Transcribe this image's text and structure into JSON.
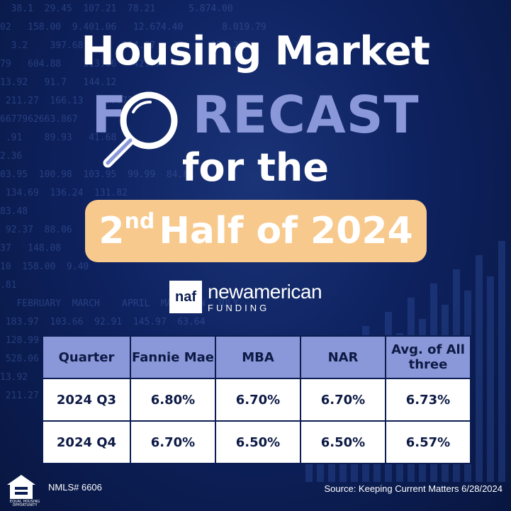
{
  "title": {
    "line1": "Housing Market",
    "line2_prefix": "F",
    "line2_suffix": "RECAST",
    "line3": "for the",
    "highlight_ordinal": "2",
    "highlight_suffix": "nd",
    "highlight_rest": "Half of 2024"
  },
  "logo": {
    "mark": "naf",
    "name": "newamerican",
    "sub": "FUNDING"
  },
  "table": {
    "headers": [
      "Quarter",
      "Fannie Mae",
      "MBA",
      "NAR",
      "Avg. of All three"
    ],
    "rows": [
      [
        "2024 Q3",
        "6.80%",
        "6.70%",
        "6.70%",
        "6.73%"
      ],
      [
        "2024 Q4",
        "6.70%",
        "6.50%",
        "6.50%",
        "6.57%"
      ]
    ]
  },
  "footer": {
    "equal_housing": "EQUAL HOUSING OPPORTUNITY",
    "nmls": "NMLS# 6606",
    "source": "Source: Keeping Current Matters 6/28/2024"
  },
  "colors": {
    "background": "#0b1d52",
    "accent_periwinkle": "#8a97d8",
    "accent_peach": "#f8c98d"
  },
  "icons": [
    "magnifying-glass-icon",
    "equal-housing-icon"
  ]
}
